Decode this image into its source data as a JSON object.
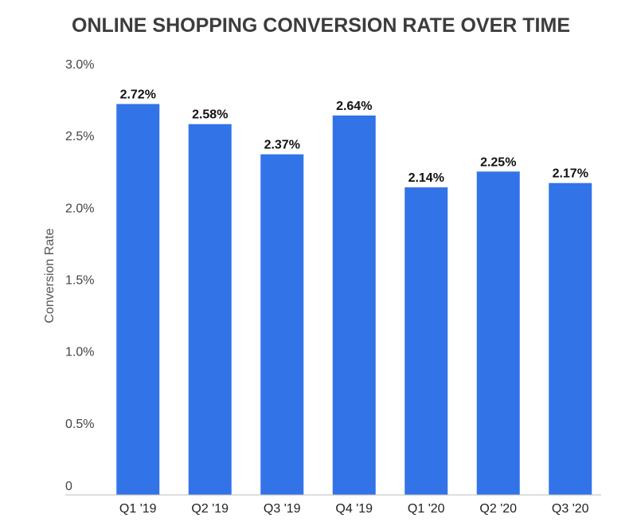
{
  "chart_data": {
    "type": "bar",
    "title": "ONLINE SHOPPING CONVERSION RATE OVER TIME",
    "xlabel": "",
    "ylabel": "Conversion Rate",
    "categories": [
      "Q1 '19",
      "Q2 '19",
      "Q3 '19",
      "Q4 '19",
      "Q1 '20",
      "Q2 '20",
      "Q3 '20"
    ],
    "values": [
      2.72,
      2.58,
      2.37,
      2.64,
      2.14,
      2.25,
      2.17
    ],
    "data_labels": [
      "2.72%",
      "2.58%",
      "2.37%",
      "2.64%",
      "2.14%",
      "2.25%",
      "2.17%"
    ],
    "ylim": [
      0,
      3.0
    ],
    "y_ticks": [
      0,
      0.5,
      1.0,
      1.5,
      2.0,
      2.5,
      3.0
    ],
    "y_tick_labels": [
      "0",
      "0.5%",
      "1.0%",
      "1.5%",
      "2.0%",
      "2.5%",
      "3.0%"
    ],
    "grid": false,
    "legend": "none",
    "colors": {
      "bar": "#3274e8",
      "axis": "#bdbdbd"
    }
  }
}
